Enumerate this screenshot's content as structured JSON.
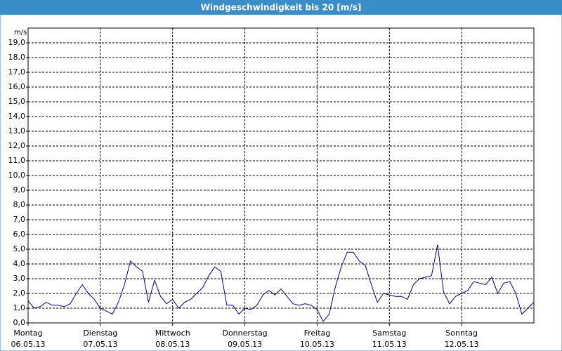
{
  "chart_data": {
    "type": "line",
    "title": "Windgeschwindigkeit bis 20 [m/s]",
    "y_unit": "m/s",
    "x": [
      0,
      2,
      4,
      6,
      8,
      10,
      12,
      14,
      16,
      18,
      20,
      22,
      24,
      26,
      28,
      30,
      32,
      34,
      36,
      38,
      40,
      42,
      44,
      46,
      48,
      50,
      52,
      54,
      56,
      58,
      60,
      62,
      64,
      66,
      68,
      70,
      72,
      74,
      76,
      78,
      80,
      82,
      84,
      86,
      88,
      90,
      92,
      94,
      96,
      98,
      100,
      102,
      104,
      106,
      108,
      110,
      112,
      114,
      116,
      118,
      120,
      122,
      124,
      126,
      128,
      130,
      132,
      134,
      136,
      138,
      140,
      142,
      144,
      146,
      148,
      150,
      152,
      154,
      156,
      158,
      160,
      162,
      164,
      166,
      168
    ],
    "series": [
      {
        "color": "#00008b",
        "values": [
          1.5,
          1.0,
          1.1,
          1.4,
          1.2,
          1.2,
          1.1,
          1.3,
          2.0,
          2.6,
          2.0,
          1.6,
          1.0,
          0.8,
          0.6,
          1.4,
          2.6,
          4.2,
          3.8,
          3.5,
          1.4,
          2.9,
          1.8,
          1.3,
          1.6,
          1.0,
          1.4,
          1.6,
          2.0,
          2.4,
          3.2,
          3.8,
          3.5,
          1.2,
          1.2,
          0.6,
          1.0,
          0.9,
          1.2,
          1.9,
          2.2,
          1.9,
          2.3,
          1.8,
          1.3,
          1.2,
          1.3,
          1.2,
          0.9,
          0.1,
          0.6,
          2.4,
          3.8,
          4.8,
          4.8,
          4.2,
          3.9,
          2.6,
          1.4,
          2.0,
          1.9,
          1.8,
          1.8,
          1.6,
          2.6,
          3.0,
          3.1,
          3.2,
          5.3,
          2.1,
          1.3,
          1.8,
          2.0,
          2.2,
          2.8,
          2.7,
          2.6,
          3.1,
          2.0,
          2.7,
          2.8,
          2.0,
          0.6,
          1.0,
          1.4
        ]
      }
    ],
    "xlim": [
      0,
      168
    ],
    "xticks": [
      {
        "value": 0,
        "label": "Montag"
      },
      {
        "value": 24,
        "label": "Dienstag"
      },
      {
        "value": 48,
        "label": "Mittwoch"
      },
      {
        "value": 72,
        "label": "Donnerstag"
      },
      {
        "value": 96,
        "label": "Freitag"
      },
      {
        "value": 120,
        "label": "Samstag"
      },
      {
        "value": 144,
        "label": "Sonntag"
      }
    ],
    "xtick_dates": [
      "06.05.13",
      "07.05.13",
      "08.05.13",
      "09.05.13",
      "10.05.13",
      "11.05.13",
      "12.05.13"
    ],
    "ylim": [
      0,
      20
    ],
    "yticks": [
      {
        "value": 0,
        "label": "0,0"
      },
      {
        "value": 1,
        "label": "1,0"
      },
      {
        "value": 2,
        "label": "2,0"
      },
      {
        "value": 3,
        "label": "3,0"
      },
      {
        "value": 4,
        "label": "4,0"
      },
      {
        "value": 5,
        "label": "5,0"
      },
      {
        "value": 6,
        "label": "6,0"
      },
      {
        "value": 7,
        "label": "7,0"
      },
      {
        "value": 8,
        "label": "8,0"
      },
      {
        "value": 9,
        "label": "9,0"
      },
      {
        "value": 10,
        "label": "10,0"
      },
      {
        "value": 11,
        "label": "11,0"
      },
      {
        "value": 12,
        "label": "12,0"
      },
      {
        "value": 13,
        "label": "13,0"
      },
      {
        "value": 14,
        "label": "14,0"
      },
      {
        "value": 15,
        "label": "15,0"
      },
      {
        "value": 16,
        "label": "16,0"
      },
      {
        "value": 17,
        "label": "17,0"
      },
      {
        "value": 18,
        "label": "18,0"
      },
      {
        "value": 19,
        "label": "19,0"
      }
    ],
    "grid": true
  }
}
